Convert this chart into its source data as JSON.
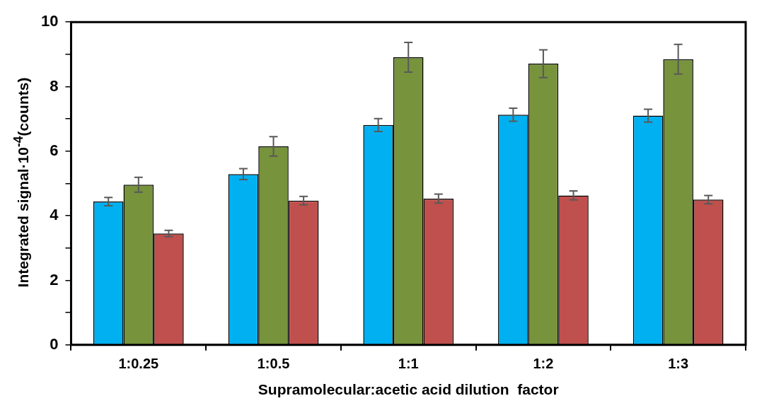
{
  "chart_data": {
    "type": "bar",
    "xlabel": "Supramolecular:acetic acid dilution  factor",
    "ylabel": "Integrated signal·10$^{-4}$(counts)",
    "categories": [
      "1:0.25",
      "1:0.5",
      "1:1",
      "1:2",
      "1:3"
    ],
    "series": [
      {
        "color": "#00b0f0",
        "values": [
          4.44,
          5.29,
          6.81,
          7.13,
          7.1
        ],
        "errors": [
          0.13,
          0.17,
          0.2,
          0.2,
          0.2
        ]
      },
      {
        "color": "#77933c",
        "values": [
          4.96,
          6.15,
          8.91,
          8.71,
          8.85
        ],
        "errors": [
          0.23,
          0.3,
          0.46,
          0.43,
          0.46
        ]
      },
      {
        "color": "#c0504d",
        "values": [
          3.45,
          4.47,
          4.53,
          4.63,
          4.5
        ],
        "errors": [
          0.1,
          0.13,
          0.14,
          0.14,
          0.13
        ]
      }
    ],
    "ylim": [
      0,
      10
    ],
    "yticks": [
      0,
      {
        "value": 1,
        "label": null
      },
      2,
      {
        "value": 3,
        "label": null
      },
      4,
      {
        "value": 5,
        "label": null
      },
      6,
      {
        "value": 7,
        "label": null
      },
      8,
      {
        "value": 9,
        "label": null
      },
      10
    ],
    "grid": false,
    "legend": false
  }
}
